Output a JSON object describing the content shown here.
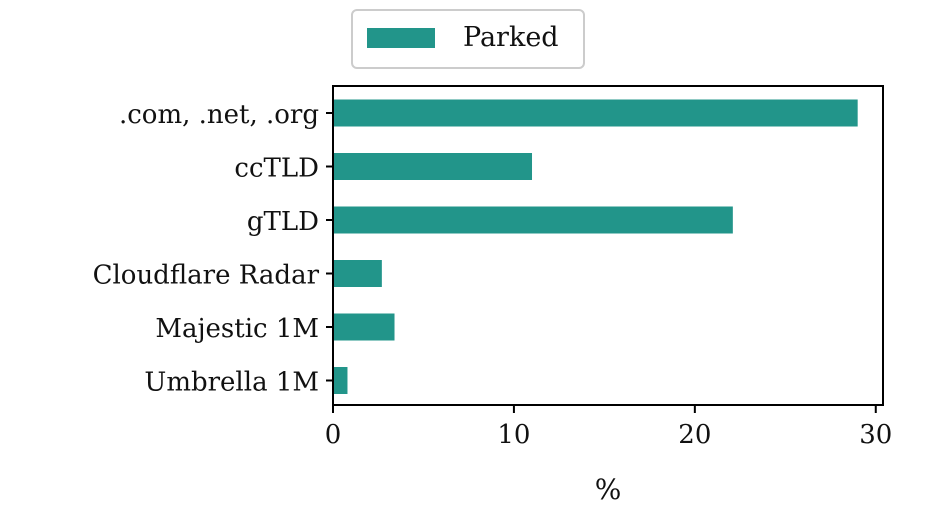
{
  "chart_data": {
    "type": "bar",
    "orientation": "horizontal",
    "categories": [
      ".com, .net, .org",
      "ccTLD",
      "gTLD",
      "Cloudflare Radar",
      "Majestic 1M",
      "Umbrella 1M"
    ],
    "series": [
      {
        "name": "Parked",
        "values": [
          29.0,
          11.0,
          22.1,
          2.7,
          3.4,
          0.8
        ],
        "color": "#22958a"
      }
    ],
    "xlabel": "%",
    "ylabel": "",
    "xlim": [
      0,
      30.4
    ],
    "xticks": [
      0,
      10,
      20,
      30
    ],
    "grid": false,
    "legend_position": "top-center"
  }
}
